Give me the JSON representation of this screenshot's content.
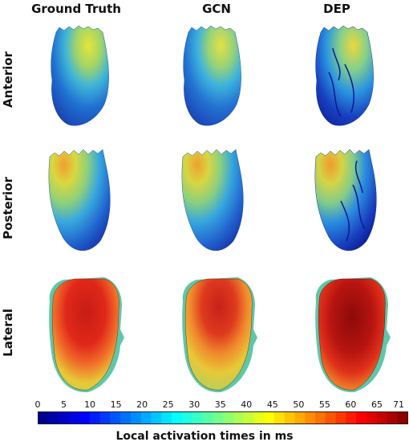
{
  "columns": [
    "Ground Truth",
    "GCN",
    "DEP"
  ],
  "rows": [
    "Anterior",
    "Posterior",
    "Lateral"
  ],
  "colorbar": {
    "title": "Local activation times in ms",
    "ticks": [
      "0",
      "5",
      "10",
      "15",
      "20",
      "25",
      "30",
      "35",
      "40",
      "45",
      "50",
      "55",
      "60",
      "65",
      "71"
    ],
    "range": [
      0,
      71
    ],
    "colormap": "jet"
  }
}
